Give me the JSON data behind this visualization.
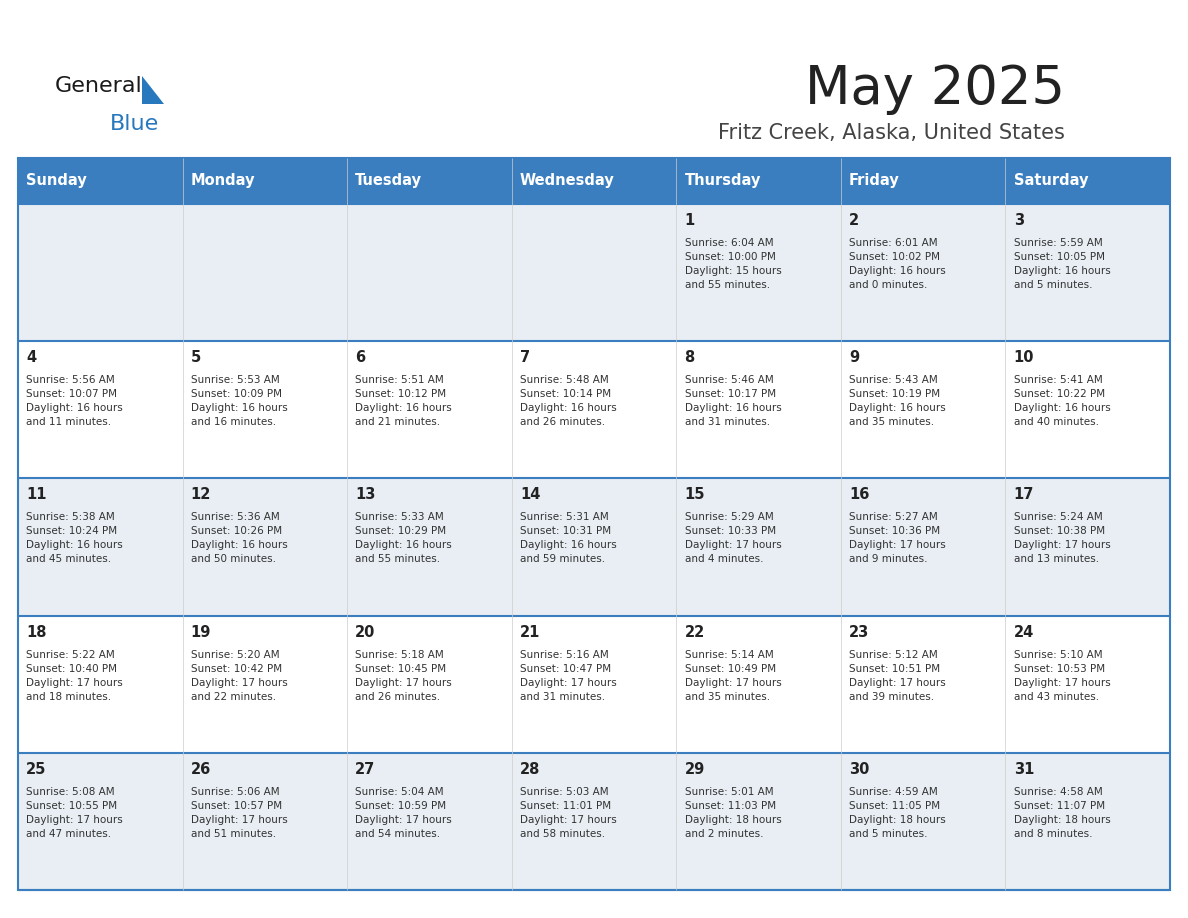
{
  "title": "May 2025",
  "subtitle": "Fritz Creek, Alaska, United States",
  "days_of_week": [
    "Sunday",
    "Monday",
    "Tuesday",
    "Wednesday",
    "Thursday",
    "Friday",
    "Saturday"
  ],
  "header_bg": "#3a7ebf",
  "header_text": "#ffffff",
  "row_bg_odd": "#e8eef4",
  "row_bg_even": "#ffffff",
  "cell_border_color": "#3a7ebf",
  "day_number_color": "#222222",
  "content_color": "#333333",
  "title_color": "#222222",
  "subtitle_color": "#444444",
  "logo_general_color": "#1a1a1a",
  "logo_blue_color": "#2878be",
  "logo_triangle_color": "#2878be",
  "calendar_data": [
    [
      {
        "day": "",
        "info": ""
      },
      {
        "day": "",
        "info": ""
      },
      {
        "day": "",
        "info": ""
      },
      {
        "day": "",
        "info": ""
      },
      {
        "day": "1",
        "info": "Sunrise: 6:04 AM\nSunset: 10:00 PM\nDaylight: 15 hours\nand 55 minutes."
      },
      {
        "day": "2",
        "info": "Sunrise: 6:01 AM\nSunset: 10:02 PM\nDaylight: 16 hours\nand 0 minutes."
      },
      {
        "day": "3",
        "info": "Sunrise: 5:59 AM\nSunset: 10:05 PM\nDaylight: 16 hours\nand 5 minutes."
      }
    ],
    [
      {
        "day": "4",
        "info": "Sunrise: 5:56 AM\nSunset: 10:07 PM\nDaylight: 16 hours\nand 11 minutes."
      },
      {
        "day": "5",
        "info": "Sunrise: 5:53 AM\nSunset: 10:09 PM\nDaylight: 16 hours\nand 16 minutes."
      },
      {
        "day": "6",
        "info": "Sunrise: 5:51 AM\nSunset: 10:12 PM\nDaylight: 16 hours\nand 21 minutes."
      },
      {
        "day": "7",
        "info": "Sunrise: 5:48 AM\nSunset: 10:14 PM\nDaylight: 16 hours\nand 26 minutes."
      },
      {
        "day": "8",
        "info": "Sunrise: 5:46 AM\nSunset: 10:17 PM\nDaylight: 16 hours\nand 31 minutes."
      },
      {
        "day": "9",
        "info": "Sunrise: 5:43 AM\nSunset: 10:19 PM\nDaylight: 16 hours\nand 35 minutes."
      },
      {
        "day": "10",
        "info": "Sunrise: 5:41 AM\nSunset: 10:22 PM\nDaylight: 16 hours\nand 40 minutes."
      }
    ],
    [
      {
        "day": "11",
        "info": "Sunrise: 5:38 AM\nSunset: 10:24 PM\nDaylight: 16 hours\nand 45 minutes."
      },
      {
        "day": "12",
        "info": "Sunrise: 5:36 AM\nSunset: 10:26 PM\nDaylight: 16 hours\nand 50 minutes."
      },
      {
        "day": "13",
        "info": "Sunrise: 5:33 AM\nSunset: 10:29 PM\nDaylight: 16 hours\nand 55 minutes."
      },
      {
        "day": "14",
        "info": "Sunrise: 5:31 AM\nSunset: 10:31 PM\nDaylight: 16 hours\nand 59 minutes."
      },
      {
        "day": "15",
        "info": "Sunrise: 5:29 AM\nSunset: 10:33 PM\nDaylight: 17 hours\nand 4 minutes."
      },
      {
        "day": "16",
        "info": "Sunrise: 5:27 AM\nSunset: 10:36 PM\nDaylight: 17 hours\nand 9 minutes."
      },
      {
        "day": "17",
        "info": "Sunrise: 5:24 AM\nSunset: 10:38 PM\nDaylight: 17 hours\nand 13 minutes."
      }
    ],
    [
      {
        "day": "18",
        "info": "Sunrise: 5:22 AM\nSunset: 10:40 PM\nDaylight: 17 hours\nand 18 minutes."
      },
      {
        "day": "19",
        "info": "Sunrise: 5:20 AM\nSunset: 10:42 PM\nDaylight: 17 hours\nand 22 minutes."
      },
      {
        "day": "20",
        "info": "Sunrise: 5:18 AM\nSunset: 10:45 PM\nDaylight: 17 hours\nand 26 minutes."
      },
      {
        "day": "21",
        "info": "Sunrise: 5:16 AM\nSunset: 10:47 PM\nDaylight: 17 hours\nand 31 minutes."
      },
      {
        "day": "22",
        "info": "Sunrise: 5:14 AM\nSunset: 10:49 PM\nDaylight: 17 hours\nand 35 minutes."
      },
      {
        "day": "23",
        "info": "Sunrise: 5:12 AM\nSunset: 10:51 PM\nDaylight: 17 hours\nand 39 minutes."
      },
      {
        "day": "24",
        "info": "Sunrise: 5:10 AM\nSunset: 10:53 PM\nDaylight: 17 hours\nand 43 minutes."
      }
    ],
    [
      {
        "day": "25",
        "info": "Sunrise: 5:08 AM\nSunset: 10:55 PM\nDaylight: 17 hours\nand 47 minutes."
      },
      {
        "day": "26",
        "info": "Sunrise: 5:06 AM\nSunset: 10:57 PM\nDaylight: 17 hours\nand 51 minutes."
      },
      {
        "day": "27",
        "info": "Sunrise: 5:04 AM\nSunset: 10:59 PM\nDaylight: 17 hours\nand 54 minutes."
      },
      {
        "day": "28",
        "info": "Sunrise: 5:03 AM\nSunset: 11:01 PM\nDaylight: 17 hours\nand 58 minutes."
      },
      {
        "day": "29",
        "info": "Sunrise: 5:01 AM\nSunset: 11:03 PM\nDaylight: 18 hours\nand 2 minutes."
      },
      {
        "day": "30",
        "info": "Sunrise: 4:59 AM\nSunset: 11:05 PM\nDaylight: 18 hours\nand 5 minutes."
      },
      {
        "day": "31",
        "info": "Sunrise: 4:58 AM\nSunset: 11:07 PM\nDaylight: 18 hours\nand 8 minutes."
      }
    ]
  ]
}
